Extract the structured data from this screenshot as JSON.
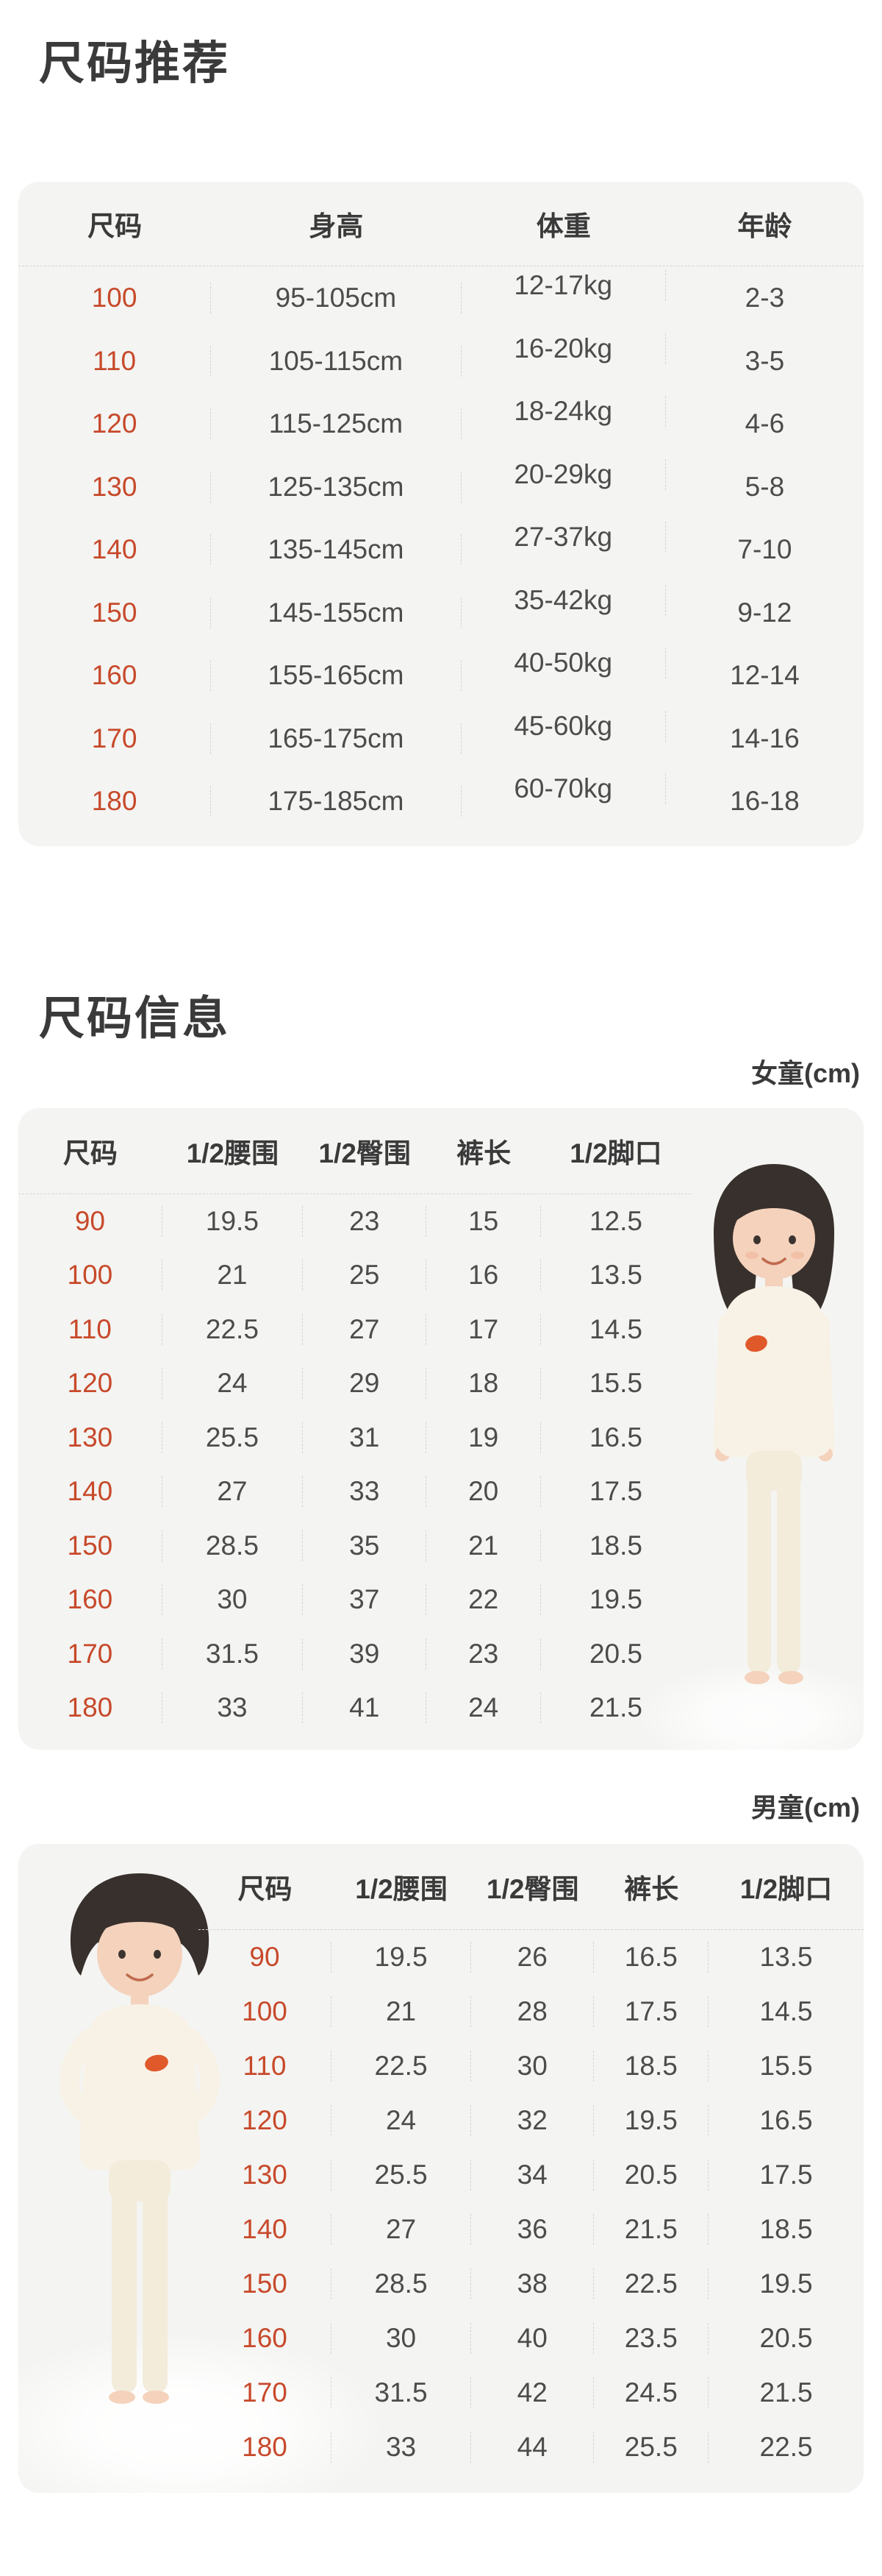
{
  "colors": {
    "accent": "#c7492a",
    "card": "#f4f4f2",
    "ink": "#3a3a3a",
    "cell": "#4c4c4c",
    "line": "#d6d4d0"
  },
  "section_recommend": {
    "title": "尺码推荐",
    "table": {
      "headers": [
        "尺码",
        "身高",
        "体重",
        "年龄"
      ],
      "rows": [
        [
          "100",
          "95-105cm",
          "12-17kg",
          "2-3"
        ],
        [
          "110",
          "105-115cm",
          "16-20kg",
          "3-5"
        ],
        [
          "120",
          "115-125cm",
          "18-24kg",
          "4-6"
        ],
        [
          "130",
          "125-135cm",
          "20-29kg",
          "5-8"
        ],
        [
          "140",
          "135-145cm",
          "27-37kg",
          "7-10"
        ],
        [
          "150",
          "145-155cm",
          "35-42kg",
          "9-12"
        ],
        [
          "160",
          "155-165cm",
          "40-50kg",
          "12-14"
        ],
        [
          "170",
          "165-175cm",
          "45-60kg",
          "14-16"
        ],
        [
          "180",
          "175-185cm",
          "60-70kg",
          "16-18"
        ]
      ]
    }
  },
  "section_info": {
    "title": "尺码信息",
    "girl": {
      "label": "女童(cm)",
      "headers": [
        "尺码",
        "1/2腰围",
        "1/2臀围",
        "裤长",
        "1/2脚口"
      ],
      "rows": [
        [
          "90",
          "19.5",
          "23",
          "15",
          "12.5"
        ],
        [
          "100",
          "21",
          "25",
          "16",
          "13.5"
        ],
        [
          "110",
          "22.5",
          "27",
          "17",
          "14.5"
        ],
        [
          "120",
          "24",
          "29",
          "18",
          "15.5"
        ],
        [
          "130",
          "25.5",
          "31",
          "19",
          "16.5"
        ],
        [
          "140",
          "27",
          "33",
          "20",
          "17.5"
        ],
        [
          "150",
          "28.5",
          "35",
          "21",
          "18.5"
        ],
        [
          "160",
          "30",
          "37",
          "22",
          "19.5"
        ],
        [
          "170",
          "31.5",
          "39",
          "23",
          "20.5"
        ],
        [
          "180",
          "33",
          "41",
          "24",
          "21.5"
        ]
      ]
    },
    "boy": {
      "label": "男童(cm)",
      "headers": [
        "尺码",
        "1/2腰围",
        "1/2臀围",
        "裤长",
        "1/2脚口"
      ],
      "rows": [
        [
          "90",
          "19.5",
          "26",
          "16.5",
          "13.5"
        ],
        [
          "100",
          "21",
          "28",
          "17.5",
          "14.5"
        ],
        [
          "110",
          "22.5",
          "30",
          "18.5",
          "15.5"
        ],
        [
          "120",
          "24",
          "32",
          "19.5",
          "16.5"
        ],
        [
          "130",
          "25.5",
          "34",
          "20.5",
          "17.5"
        ],
        [
          "140",
          "27",
          "36",
          "21.5",
          "18.5"
        ],
        [
          "150",
          "28.5",
          "38",
          "22.5",
          "19.5"
        ],
        [
          "160",
          "30",
          "40",
          "23.5",
          "20.5"
        ],
        [
          "170",
          "31.5",
          "42",
          "24.5",
          "21.5"
        ],
        [
          "180",
          "33",
          "44",
          "25.5",
          "22.5"
        ]
      ]
    }
  }
}
